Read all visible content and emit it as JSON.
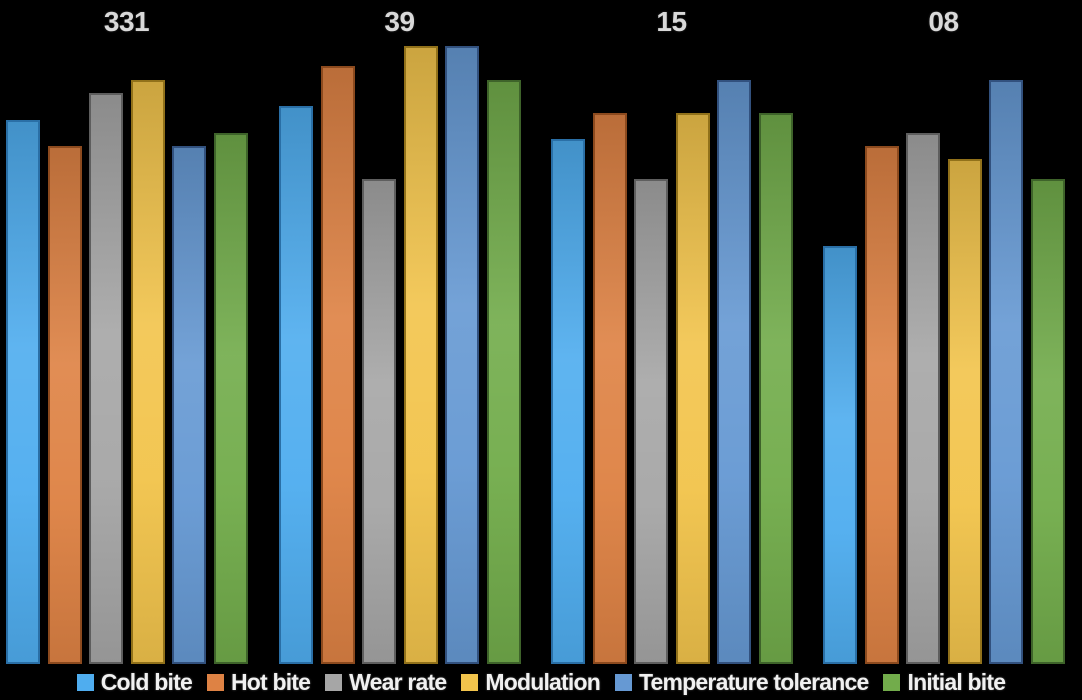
{
  "chart_data": {
    "type": "bar",
    "title": "",
    "xlabel": "",
    "ylabel": "",
    "categories": [
      "331",
      "39",
      "15",
      "08"
    ],
    "series": [
      {
        "name": "Cold bite",
        "color": "#4FADEF",
        "border": "#2A6FA6",
        "values": [
          8.2,
          8.4,
          7.9,
          6.3
        ]
      },
      {
        "name": "Hot bite",
        "color": "#DE8244",
        "border": "#8C4A1E",
        "values": [
          7.8,
          9.0,
          8.3,
          7.8
        ]
      },
      {
        "name": "Wear rate",
        "color": "#A6A6A6",
        "border": "#5E5E5E",
        "values": [
          8.6,
          7.3,
          7.3,
          8.0
        ]
      },
      {
        "name": "Modulation",
        "color": "#F2C44C",
        "border": "#91711A",
        "values": [
          8.8,
          9.3,
          8.3,
          7.6
        ]
      },
      {
        "name": "Temperature tolerance",
        "color": "#6699D3",
        "border": "#32517E",
        "values": [
          7.8,
          9.3,
          8.8,
          8.8
        ]
      },
      {
        "name": "Initial bite",
        "color": "#72AC4B",
        "border": "#3E632A",
        "values": [
          8.0,
          8.8,
          8.3,
          7.3
        ]
      }
    ],
    "ylim": [
      0,
      10
    ],
    "grid": false,
    "axes_hidden": true,
    "category_labels_position": "top",
    "legend_position": "bottom",
    "background_color": "#000000",
    "category_label_color": "#D9D9D9",
    "legend_text_color": "#F1F1F1"
  }
}
